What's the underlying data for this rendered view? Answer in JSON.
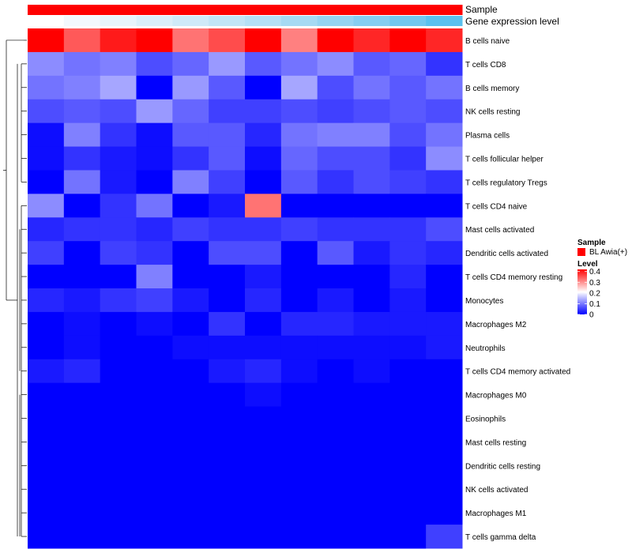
{
  "chart_data": {
    "type": "heatmap",
    "annotation_tracks": [
      {
        "name": "Sample",
        "colors": [
          "#ff0000",
          "#ff0000",
          "#ff0000",
          "#ff0000",
          "#ff0000",
          "#ff0000",
          "#ff0000",
          "#ff0000",
          "#ff0000",
          "#ff0000",
          "#ff0000",
          "#ff0000"
        ]
      },
      {
        "name": "Gene expression level",
        "colors": [
          "#ffffff",
          "#f3f8fd",
          "#e8f4fb",
          "#dbeff9",
          "#cfeaf8",
          "#c2e5f6",
          "#b5e0f5",
          "#a6daf3",
          "#96d4f2",
          "#85cef1",
          "#72c7ef",
          "#5ac0ee"
        ]
      }
    ],
    "rows": [
      "B cells naive",
      "T cells CD8",
      "B cells memory",
      "NK cells resting",
      "Plasma cells",
      "T cells follicular helper",
      "T cells regulatory  Tregs",
      "T cells CD4 naive",
      "Mast cells activated",
      "Dendritic cells activated",
      "T cells CD4 memory resting",
      "Monocytes",
      "Macrophages M2",
      "Neutrophils",
      "T cells CD4 memory activated",
      "Macrophages M0",
      "Eosinophils",
      "Mast cells resting",
      "Dendritic cells resting",
      "NK cells activated",
      "Macrophages M1",
      "T cells gamma delta"
    ],
    "n_columns": 12,
    "values": [
      [
        0.42,
        0.33,
        0.38,
        0.42,
        0.31,
        0.34,
        0.41,
        0.3,
        0.4,
        0.37,
        0.42,
        0.37
      ],
      [
        0.11,
        0.09,
        0.1,
        0.06,
        0.08,
        0.12,
        0.07,
        0.09,
        0.11,
        0.07,
        0.08,
        0.04
      ],
      [
        0.09,
        0.1,
        0.13,
        0.0,
        0.12,
        0.07,
        0.0,
        0.13,
        0.06,
        0.09,
        0.07,
        0.09
      ],
      [
        0.06,
        0.07,
        0.06,
        0.12,
        0.08,
        0.05,
        0.05,
        0.06,
        0.05,
        0.06,
        0.07,
        0.06
      ],
      [
        0.01,
        0.1,
        0.04,
        0.01,
        0.07,
        0.07,
        0.03,
        0.09,
        0.1,
        0.1,
        0.06,
        0.09
      ],
      [
        0.01,
        0.04,
        0.02,
        0.01,
        0.04,
        0.07,
        0.01,
        0.08,
        0.06,
        0.06,
        0.04,
        0.11
      ],
      [
        0.0,
        0.09,
        0.02,
        0.0,
        0.1,
        0.05,
        0.0,
        0.07,
        0.04,
        0.06,
        0.05,
        0.04
      ],
      [
        0.11,
        0.0,
        0.04,
        0.09,
        0.0,
        0.02,
        0.31,
        0.0,
        0.0,
        0.0,
        0.0,
        0.0
      ],
      [
        0.03,
        0.04,
        0.04,
        0.03,
        0.05,
        0.04,
        0.04,
        0.05,
        0.04,
        0.04,
        0.04,
        0.06
      ],
      [
        0.05,
        0.0,
        0.05,
        0.04,
        0.0,
        0.06,
        0.06,
        0.0,
        0.07,
        0.02,
        0.04,
        0.03
      ],
      [
        0.0,
        0.0,
        0.0,
        0.1,
        0.0,
        0.0,
        0.02,
        0.0,
        0.0,
        0.0,
        0.03,
        0.0
      ],
      [
        0.03,
        0.02,
        0.04,
        0.05,
        0.02,
        0.0,
        0.03,
        0.0,
        0.02,
        0.0,
        0.02,
        0.0
      ],
      [
        0.0,
        0.01,
        0.0,
        0.01,
        0.0,
        0.04,
        0.0,
        0.03,
        0.03,
        0.02,
        0.02,
        0.02
      ],
      [
        0.0,
        0.01,
        0.0,
        0.0,
        0.01,
        0.01,
        0.01,
        0.01,
        0.01,
        0.01,
        0.01,
        0.02
      ],
      [
        0.02,
        0.03,
        0.0,
        0.0,
        0.0,
        0.02,
        0.03,
        0.01,
        0.0,
        0.01,
        0.0,
        0.0
      ],
      [
        0.0,
        0.0,
        0.0,
        0.0,
        0.0,
        0.0,
        0.01,
        0.0,
        0.0,
        0.0,
        0.0,
        0.0
      ],
      [
        0.0,
        0.0,
        0.0,
        0.0,
        0.0,
        0.0,
        0.0,
        0.0,
        0.0,
        0.0,
        0.0,
        0.0
      ],
      [
        0.0,
        0.0,
        0.0,
        0.0,
        0.0,
        0.0,
        0.0,
        0.0,
        0.0,
        0.0,
        0.0,
        0.0
      ],
      [
        0.0,
        0.0,
        0.0,
        0.0,
        0.0,
        0.0,
        0.0,
        0.0,
        0.0,
        0.0,
        0.0,
        0.0
      ],
      [
        0.0,
        0.0,
        0.0,
        0.0,
        0.0,
        0.0,
        0.0,
        0.0,
        0.0,
        0.0,
        0.0,
        0.0
      ],
      [
        0.0,
        0.0,
        0.0,
        0.0,
        0.0,
        0.0,
        0.0,
        0.0,
        0.0,
        0.0,
        0.0,
        0.0
      ],
      [
        0.0,
        0.0,
        0.0,
        0.0,
        0.0,
        0.0,
        0.0,
        0.0,
        0.0,
        0.0,
        0.0,
        0.05
      ]
    ],
    "color_scale": {
      "low": "#0000ff",
      "mid": "#ffffff",
      "high": "#ff0000",
      "low_value": 0,
      "mid_value": 0.2,
      "high_value": 0.4,
      "range": [
        0,
        0.42
      ]
    },
    "legend": {
      "placement": "right",
      "sample_title": "Sample",
      "sample_entry": "BL Awia(+)",
      "sample_color": "#ff0000",
      "level_title": "Level",
      "level_ticks": [
        "0.4",
        "0.3",
        "0.2",
        "0.1",
        "0"
      ],
      "level_tick_values": [
        0.4,
        0.3,
        0.2,
        0.1,
        0
      ]
    },
    "row_dendrogram": true,
    "grid": false
  }
}
